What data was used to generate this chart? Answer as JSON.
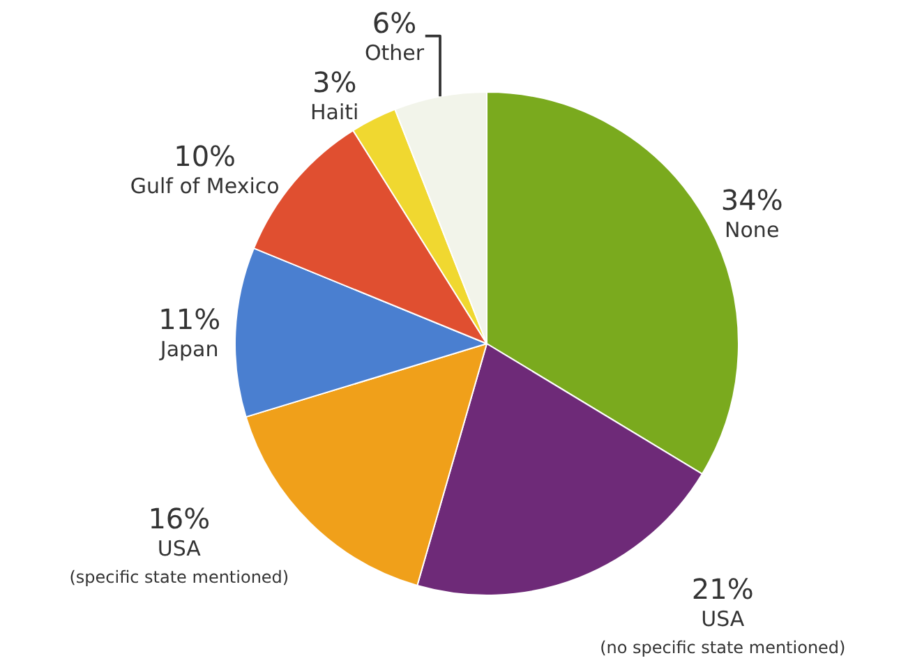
{
  "chart_data": {
    "type": "pie",
    "categories": [
      "None",
      "USA\n(no specific state mentioned)",
      "USA\n(specific state mentioned)",
      "Japan",
      "Gulf of Mexico",
      "Haiti",
      "Other"
    ],
    "values": [
      34,
      21,
      16,
      11,
      10,
      3,
      6
    ],
    "value_labels": [
      "34%",
      "21%",
      "16%",
      "11%",
      "10%",
      "3%",
      "6%"
    ],
    "colors": [
      "#7aaa1e",
      "#6e2a78",
      "#f0a01a",
      "#4a7fd0",
      "#e04f30",
      "#f0d830",
      "#f2f4ea"
    ],
    "legend": false
  }
}
